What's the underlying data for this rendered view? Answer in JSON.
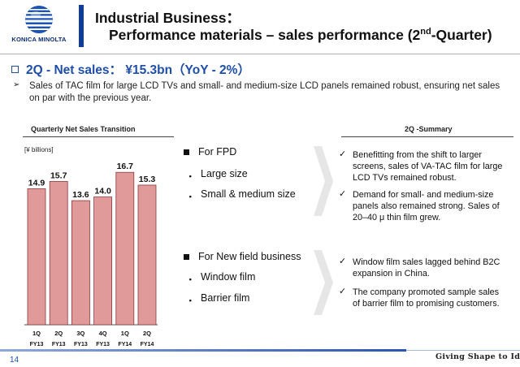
{
  "header": {
    "logo_text": "KONICA MINOLTA",
    "title_line1": "Industrial Business：",
    "title_line2_main": "Performance materials – sales performance (2",
    "title_line2_sup": "nd",
    "title_line2_tail": "-Quarter)"
  },
  "headline": {
    "text": "2Q - Net sales：  ¥15.3bn（YoY - 2%）",
    "bullet_arrow": "➢",
    "description": "Sales of TAC film for large LCD TVs and small- and medium-size LCD panels remained robust, ensuring net sales on par with the previous year."
  },
  "chart_data": {
    "type": "bar",
    "title": "Quarterly Net Sales Transition",
    "unit_label": "[¥ billions]",
    "categories": [
      "1Q",
      "2Q",
      "3Q",
      "4Q",
      "1Q",
      "2Q"
    ],
    "category_years": [
      "FY13",
      "FY13",
      "FY13",
      "FY13",
      "FY14",
      "FY14"
    ],
    "values": [
      14.9,
      15.7,
      13.6,
      14.0,
      16.7,
      15.3
    ],
    "value_labels": [
      "14.9",
      "15.7",
      "13.6",
      "14.0",
      "16.7",
      "15.3"
    ],
    "bar_color": "#e09a9a",
    "bar_stroke": "#8a3a3a",
    "ylim": [
      0,
      18.5
    ]
  },
  "middle": {
    "fpd_header": "For FPD",
    "fpd_items": [
      "Large size",
      "Small & medium size"
    ],
    "new_field_header": "For New field business",
    "new_field_items": [
      "Window film",
      "Barrier film"
    ],
    "item_bullet": "・"
  },
  "summary": {
    "title": "2Q -Summary",
    "check_glyph": "✓",
    "fpd_points": [
      "Benefitting from the shift to larger screens, sales of VA-TAC film for large LCD TVs remained robust.",
      "Demand for small- and medium-size panels also remained strong. Sales of 20–40 μ thin film grew."
    ],
    "new_field_points": [
      "Window film sales lagged behind B2C expansion in China.",
      "The company promoted sample sales of barrier film to promising customers."
    ]
  },
  "footer": {
    "page_number": "14",
    "tagline": "Giving Shape to Ideas"
  },
  "colors": {
    "brand_blue": "#1f4ea8",
    "title_bar": "#0e3d9c",
    "chevron": "#e6e6e6"
  }
}
